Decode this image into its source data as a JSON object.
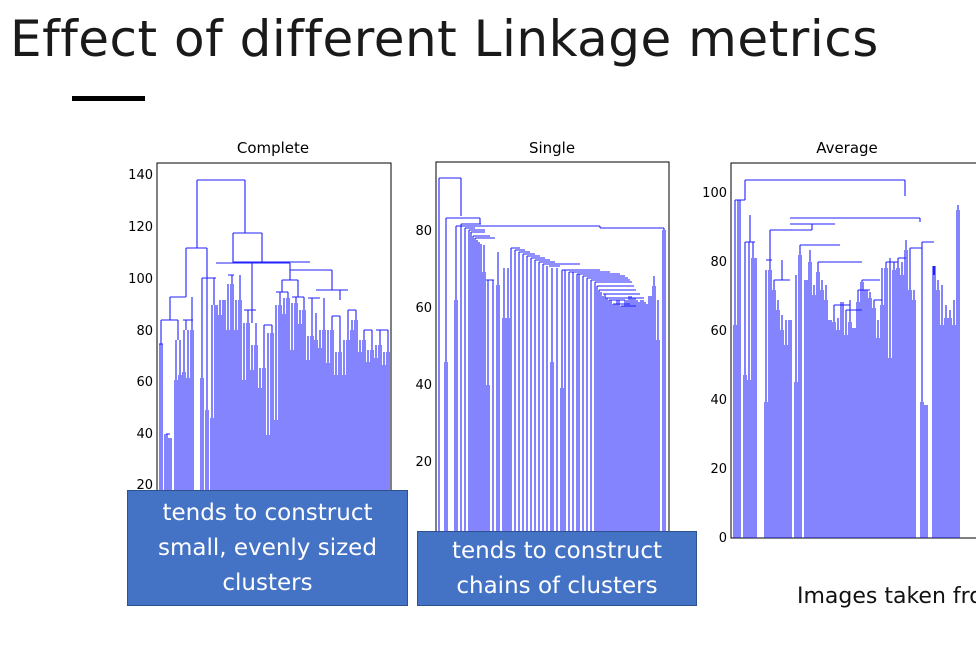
{
  "slide": {
    "title": "Effect of different Linkage metrics",
    "source_note": "Images taken fro"
  },
  "callouts": {
    "complete": "tends to construct\nsmall, evenly sized\nclusters",
    "single": "tends to construct\nchains of clusters"
  },
  "colors": {
    "tree": "#1f1fff",
    "callout_fill": "#4472c4",
    "axis": "#000000"
  },
  "chart_data": [
    {
      "type": "dendrogram",
      "title": "Complete",
      "ylim": [
        0,
        145
      ],
      "ytick_labels": [
        "20",
        "40",
        "60",
        "80",
        "100",
        "120",
        "140"
      ],
      "leaf_count": 64,
      "root_merge_height": 138,
      "major_merge_heights": [
        138,
        118,
        112,
        106,
        102,
        100,
        93,
        88,
        84,
        80
      ]
    },
    {
      "type": "dendrogram",
      "title": "Single",
      "ylim": [
        0,
        95
      ],
      "ytick_labels": [
        "20",
        "40",
        "60",
        "80"
      ],
      "leaf_count": 64,
      "root_merge_height": 93,
      "major_merge_heights": [
        93,
        83,
        81,
        80,
        79,
        77,
        75,
        73,
        71,
        69,
        68,
        66,
        57,
        45,
        38
      ]
    },
    {
      "type": "dendrogram",
      "title": "Average",
      "ylim": [
        0,
        105
      ],
      "ytick_labels": [
        "0",
        "20",
        "40",
        "60",
        "80",
        "100"
      ],
      "leaf_count": 64,
      "root_merge_height": 103,
      "major_merge_heights": [
        103,
        98,
        96,
        93,
        91,
        88,
        85,
        81,
        78,
        74,
        70,
        61,
        46,
        39
      ]
    }
  ]
}
